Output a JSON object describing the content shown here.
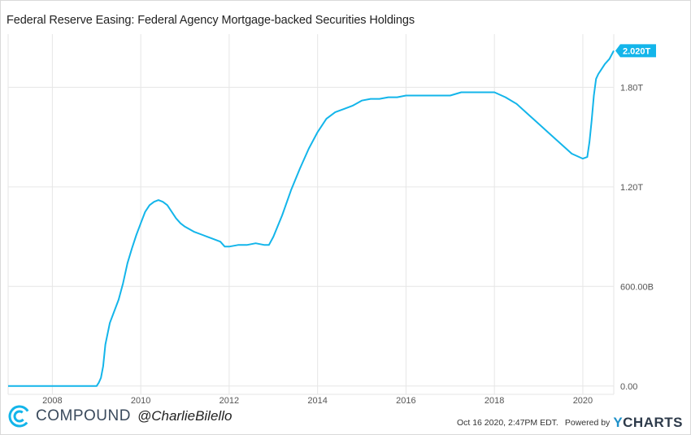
{
  "title": "Federal Reserve Easing: Federal Agency Mortgage-backed Securities Holdings",
  "colors": {
    "line": "#13b5ea",
    "grid": "#e6e6e6",
    "label_bg": "#13b5ea",
    "label_text": "#ffffff"
  },
  "chart_data": {
    "type": "line",
    "title": "Federal Reserve Easing: Federal Agency Mortgage-backed Securities Holdings",
    "xlabel": "",
    "ylabel": "",
    "x_ticks": [
      "2008",
      "2010",
      "2012",
      "2014",
      "2016",
      "2018",
      "2020"
    ],
    "y_ticks": [
      "0.00",
      "600.00B",
      "1.20T",
      "1.80T"
    ],
    "ylim": [
      -0.05,
      2.12
    ],
    "xlim": [
      2007.0,
      2020.7
    ],
    "grid": true,
    "last_value_label": "2.020T",
    "series": [
      {
        "x": [
          2007.0,
          2008.0,
          2009.0,
          2009.05,
          2009.1,
          2009.15,
          2009.2,
          2009.3,
          2009.4,
          2009.5,
          2009.6,
          2009.7,
          2009.8,
          2009.9,
          2010.0,
          2010.1,
          2010.2,
          2010.3,
          2010.4,
          2010.5,
          2010.6,
          2010.7,
          2010.8,
          2010.9,
          2011.0,
          2011.2,
          2011.4,
          2011.6,
          2011.8,
          2011.9,
          2012.0,
          2012.2,
          2012.4,
          2012.6,
          2012.8,
          2012.9,
          2013.0,
          2013.2,
          2013.4,
          2013.6,
          2013.8,
          2014.0,
          2014.2,
          2014.4,
          2014.6,
          2014.8,
          2015.0,
          2015.2,
          2015.4,
          2015.6,
          2015.8,
          2016.0,
          2016.5,
          2017.0,
          2017.25,
          2017.5,
          2017.75,
          2018.0,
          2018.25,
          2018.5,
          2018.75,
          2019.0,
          2019.25,
          2019.5,
          2019.75,
          2020.0,
          2020.1,
          2020.15,
          2020.2,
          2020.25,
          2020.3,
          2020.35,
          2020.4,
          2020.5,
          2020.6,
          2020.7
        ],
        "y": [
          0,
          0,
          0,
          0.02,
          0.05,
          0.12,
          0.25,
          0.38,
          0.45,
          0.52,
          0.62,
          0.74,
          0.83,
          0.91,
          0.98,
          1.05,
          1.09,
          1.11,
          1.12,
          1.11,
          1.09,
          1.05,
          1.01,
          0.98,
          0.96,
          0.93,
          0.91,
          0.89,
          0.87,
          0.84,
          0.84,
          0.85,
          0.85,
          0.86,
          0.85,
          0.85,
          0.9,
          1.03,
          1.18,
          1.31,
          1.43,
          1.53,
          1.61,
          1.65,
          1.67,
          1.69,
          1.72,
          1.73,
          1.73,
          1.74,
          1.74,
          1.75,
          1.75,
          1.75,
          1.77,
          1.77,
          1.77,
          1.77,
          1.74,
          1.7,
          1.64,
          1.58,
          1.52,
          1.46,
          1.4,
          1.37,
          1.38,
          1.47,
          1.6,
          1.75,
          1.85,
          1.88,
          1.9,
          1.94,
          1.97,
          2.02
        ]
      }
    ]
  },
  "footer": {
    "brand": "COMPOUND",
    "handle": "@CharlieBilello",
    "timestamp": "Oct 16 2020, 2:47PM EDT.",
    "powered_by": "Powered by",
    "ycharts_y": "Y",
    "ycharts_rest": "CHARTS"
  }
}
